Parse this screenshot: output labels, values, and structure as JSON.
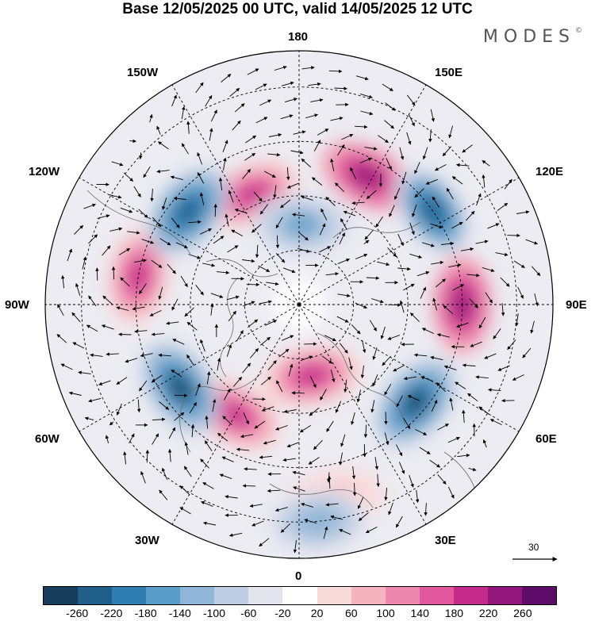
{
  "title": "Base 12/05/2025 00 UTC, valid 14/05/2025 12 UTC",
  "logo_text": "MODES",
  "logo_mark": "©",
  "longitude_labels": {
    "lon_180": "180",
    "lon_150e": "150E",
    "lon_120e": "120E",
    "lon_90e": "90E",
    "lon_60e": "60E",
    "lon_30e": "30E",
    "lon_0": "0",
    "lon_30w": "30W",
    "lon_60w": "60W",
    "lon_90w": "90W",
    "lon_120w": "120W",
    "lon_150w": "150W"
  },
  "reference_vector_label": "30",
  "colorbar": {
    "colors": [
      "#163d5c",
      "#1f5f8a",
      "#2f7eb2",
      "#5a9dc9",
      "#8fb6d6",
      "#bfcde3",
      "#e4e4ef",
      "#ffffff",
      "#f9dada",
      "#f3b4bd",
      "#ee87ad",
      "#e2589f",
      "#c42a8a",
      "#93177a",
      "#5e0c69"
    ],
    "ticks": [
      "-260",
      "-220",
      "-180",
      "-140",
      "-100",
      "-60",
      "-20",
      "20",
      "60",
      "100",
      "140",
      "180",
      "220",
      "260"
    ]
  },
  "anomaly_centers": [
    {
      "lon": -157,
      "lat": 57,
      "value": 210,
      "sign": "positive"
    },
    {
      "lon": 152,
      "lat": 50,
      "value": 240,
      "sign": "positive"
    },
    {
      "lon": 90,
      "lat": 45,
      "value": 250,
      "sign": "positive"
    },
    {
      "lon": 10,
      "lat": 70,
      "value": 210,
      "sign": "positive"
    },
    {
      "lon": -30,
      "lat": 55,
      "value": 180,
      "sign": "positive"
    },
    {
      "lon": -100,
      "lat": 45,
      "value": 180,
      "sign": "positive"
    },
    {
      "lon": 10,
      "lat": 35,
      "value": 80,
      "sign": "positive"
    },
    {
      "lon": -130,
      "lat": 50,
      "value": -250,
      "sign": "negative"
    },
    {
      "lon": 125,
      "lat": 45,
      "value": -240,
      "sign": "negative"
    },
    {
      "lon": 50,
      "lat": 48,
      "value": -270,
      "sign": "negative"
    },
    {
      "lon": -55,
      "lat": 50,
      "value": -270,
      "sign": "negative"
    },
    {
      "lon": 178,
      "lat": 68,
      "value": -150,
      "sign": "negative"
    },
    {
      "lon": 5,
      "lat": 30,
      "value": -140,
      "sign": "negative"
    }
  ]
}
